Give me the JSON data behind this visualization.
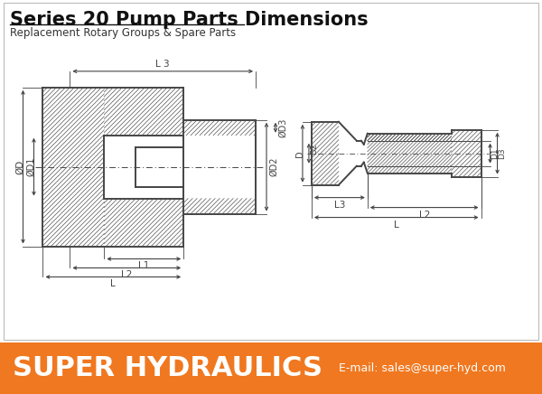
{
  "title": "Series 20 Pump Parts Dimensions",
  "subtitle": "Replacement Rotary Groups & Spare Parts",
  "footer_text": "SUPER HYDRAULICS",
  "footer_email": "E-mail: sales@super-hyd.com",
  "footer_bg": "#F07820",
  "footer_text_color": "#FFFFFF",
  "bg_color": "#FFFFFF",
  "drawing_color": "#444444",
  "title_fontsize": 15,
  "subtitle_fontsize": 8.5,
  "footer_fontsize": 22
}
